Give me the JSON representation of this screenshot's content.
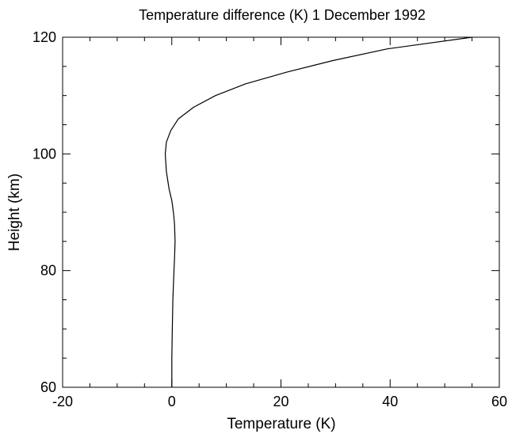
{
  "chart_data": {
    "type": "line",
    "title": "Temperature difference (K) 1 December 1992",
    "xlabel": "Temperature (K)",
    "ylabel": "Height (km)",
    "xlim": [
      -20,
      60
    ],
    "ylim": [
      60,
      120
    ],
    "xticks": [
      -20,
      0,
      20,
      40,
      60
    ],
    "xtick_labels": [
      "-20",
      "0",
      "20",
      "40",
      "60"
    ],
    "yticks": [
      60,
      80,
      100,
      120
    ],
    "ytick_labels": [
      "60",
      "80",
      "100",
      "120"
    ],
    "x_minor_step": 5,
    "y_minor_step": 5,
    "grid": false,
    "line_color": "#000000",
    "series": [
      {
        "x": [
          0.0,
          0.0,
          0.1,
          0.2,
          0.4,
          0.5,
          0.6,
          0.5,
          0.3,
          0.0,
          -0.5,
          -1.0,
          -1.2,
          -1.0,
          -0.2,
          1.2,
          4.0,
          8.0,
          13.5,
          21.0,
          29.5,
          39.5,
          55.0
        ],
        "y": [
          60,
          65,
          70,
          75,
          80,
          82,
          85,
          88,
          90,
          92,
          94,
          97,
          100,
          102,
          104,
          106,
          108,
          110,
          112,
          114,
          116,
          118,
          120
        ]
      }
    ]
  }
}
